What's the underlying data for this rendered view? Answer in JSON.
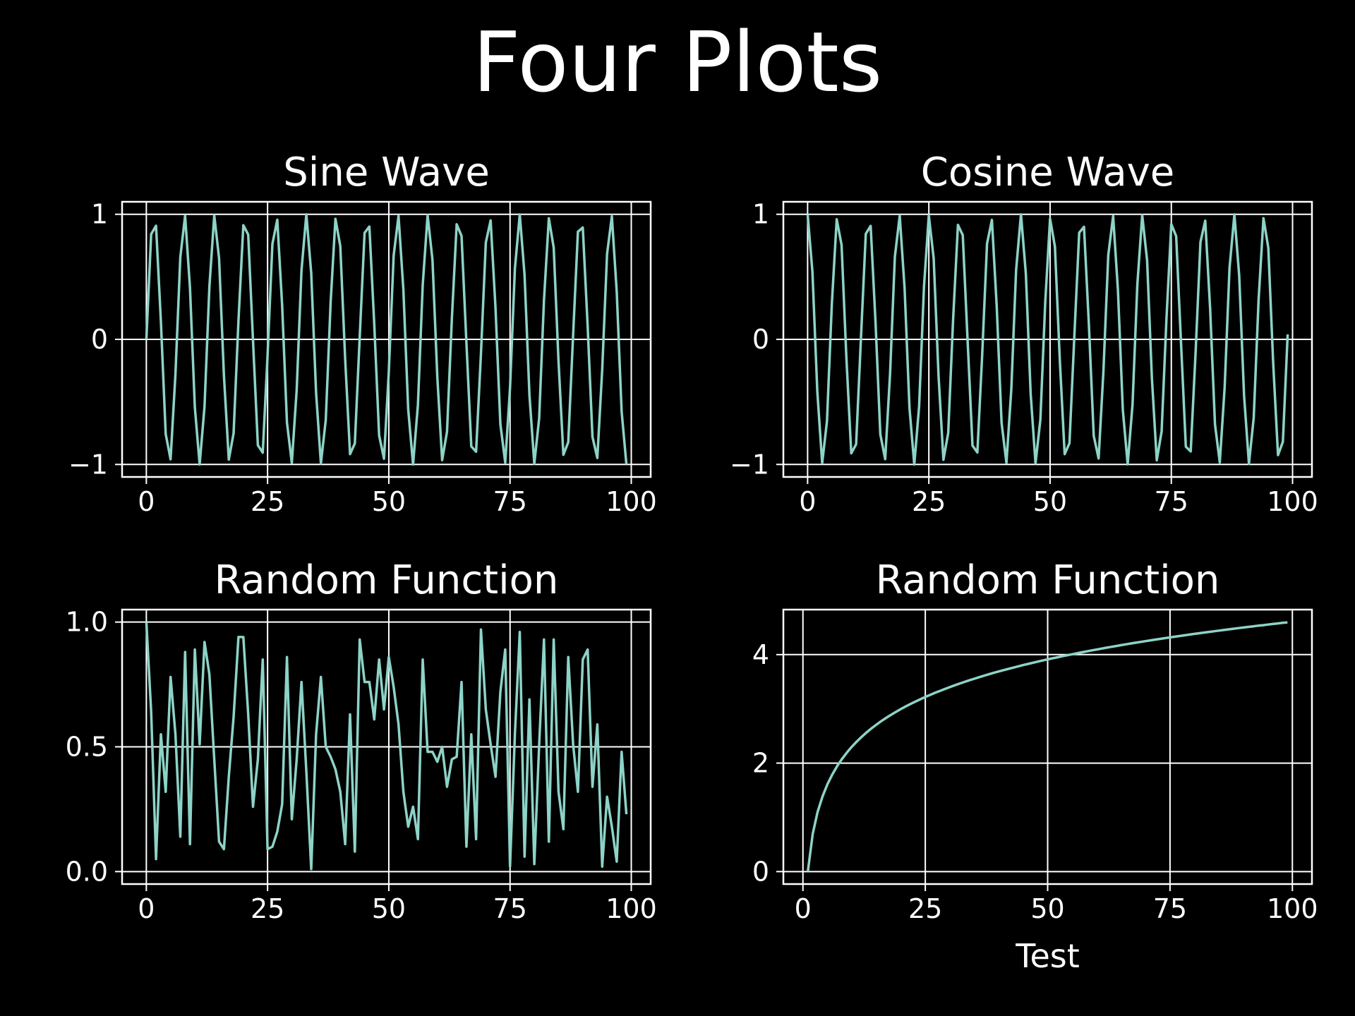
{
  "figure": {
    "title": "Four Plots",
    "background_color": "#000000",
    "foreground_color": "#ffffff",
    "line_color": "#8dd3c7"
  },
  "chart_data": [
    {
      "type": "line",
      "title": "Sine Wave",
      "xlabel": "",
      "ylabel": "",
      "function": "y = sin(x), x = 0..99 (integer steps)",
      "x": [
        0,
        1,
        2,
        3,
        4,
        5,
        6,
        7,
        8,
        9,
        10,
        11,
        12,
        13,
        14,
        15,
        16,
        17,
        18,
        19,
        20,
        21,
        22,
        23,
        24,
        25,
        26,
        27,
        28,
        29,
        30,
        31,
        32,
        33,
        34,
        35,
        36,
        37,
        38,
        39,
        40,
        41,
        42,
        43,
        44,
        45,
        46,
        47,
        48,
        49,
        50,
        51,
        52,
        53,
        54,
        55,
        56,
        57,
        58,
        59,
        60,
        61,
        62,
        63,
        64,
        65,
        66,
        67,
        68,
        69,
        70,
        71,
        72,
        73,
        74,
        75,
        76,
        77,
        78,
        79,
        80,
        81,
        82,
        83,
        84,
        85,
        86,
        87,
        88,
        89,
        90,
        91,
        92,
        93,
        94,
        95,
        96,
        97,
        98,
        99
      ],
      "y": [
        0,
        0.841,
        0.909,
        0.141,
        -0.757,
        -0.959,
        -0.279,
        0.657,
        0.989,
        0.412,
        -0.544,
        -1.0,
        -0.537,
        0.42,
        0.991,
        0.65,
        -0.288,
        -0.961,
        -0.751,
        0.15,
        0.913,
        0.837,
        -0.009,
        -0.846,
        -0.906,
        -0.132,
        0.763,
        0.956,
        0.271,
        -0.664,
        -0.988,
        -0.404,
        0.551,
        1.0,
        0.529,
        -0.428,
        -0.992,
        -0.644,
        0.296,
        0.964,
        0.745,
        -0.159,
        -0.917,
        -0.832,
        0.018,
        0.851,
        0.902,
        0.124,
        -0.768,
        -0.954,
        -0.262,
        0.67,
        0.987,
        0.396,
        -0.559,
        -1.0,
        -0.522,
        0.436,
        0.993,
        0.637,
        -0.305,
        -0.966,
        -0.739,
        0.167,
        0.92,
        0.827,
        -0.027,
        -0.856,
        -0.898,
        -0.115,
        0.774,
        0.951,
        0.254,
        -0.677,
        -0.985,
        -0.388,
        0.566,
        0.999,
        0.514,
        -0.444,
        -0.994,
        -0.63,
        0.313,
        0.968,
        0.733,
        -0.176,
        -0.923,
        -0.822,
        0.035,
        0.86,
        0.894,
        0.106,
        -0.779,
        -0.948,
        -0.245,
        0.683,
        0.984,
        0.38,
        -0.574,
        -0.999
      ],
      "xlim": [
        -5,
        104
      ],
      "ylim": [
        -1.1,
        1.1
      ],
      "xticks": [
        0,
        25,
        50,
        75,
        100
      ],
      "xtick_labels": [
        "0",
        "25",
        "50",
        "75",
        "100"
      ],
      "yticks": [
        -1,
        0,
        1
      ],
      "ytick_labels": [
        "−1",
        "0",
        "1"
      ],
      "grid": true
    },
    {
      "type": "line",
      "title": "Cosine Wave",
      "xlabel": "",
      "ylabel": "",
      "function": "y = cos(x), x = 0..99 (integer steps)",
      "x": [
        0,
        1,
        2,
        3,
        4,
        5,
        6,
        7,
        8,
        9,
        10,
        11,
        12,
        13,
        14,
        15,
        16,
        17,
        18,
        19,
        20,
        21,
        22,
        23,
        24,
        25,
        26,
        27,
        28,
        29,
        30,
        31,
        32,
        33,
        34,
        35,
        36,
        37,
        38,
        39,
        40,
        41,
        42,
        43,
        44,
        45,
        46,
        47,
        48,
        49,
        50,
        51,
        52,
        53,
        54,
        55,
        56,
        57,
        58,
        59,
        60,
        61,
        62,
        63,
        64,
        65,
        66,
        67,
        68,
        69,
        70,
        71,
        72,
        73,
        74,
        75,
        76,
        77,
        78,
        79,
        80,
        81,
        82,
        83,
        84,
        85,
        86,
        87,
        88,
        89,
        90,
        91,
        92,
        93,
        94,
        95,
        96,
        97,
        98,
        99
      ],
      "y": [
        1.0,
        0.54,
        -0.416,
        -0.99,
        -0.654,
        0.284,
        0.96,
        0.754,
        -0.146,
        -0.911,
        -0.839,
        0.004,
        0.844,
        0.907,
        0.137,
        -0.76,
        -0.958,
        -0.275,
        0.66,
        0.989,
        0.408,
        -0.548,
        -1.0,
        -0.533,
        0.424,
        0.991,
        0.647,
        -0.292,
        -0.963,
        -0.748,
        0.154,
        0.915,
        0.834,
        -0.013,
        -0.849,
        -0.904,
        -0.128,
        0.765,
        0.955,
        0.267,
        -0.667,
        -0.987,
        -0.4,
        0.555,
        1.0,
        0.525,
        -0.432,
        -0.992,
        -0.641,
        0.3,
        0.965,
        0.742,
        -0.163,
        -0.918,
        -0.83,
        0.022,
        0.853,
        0.9,
        0.12,
        -0.771,
        -0.952,
        -0.258,
        0.674,
        0.986,
        0.392,
        -0.562,
        -0.999,
        -0.518,
        0.44,
        0.993,
        0.633,
        -0.309,
        -0.967,
        -0.736,
        0.172,
        0.922,
        0.825,
        -0.031,
        -0.858,
        -0.896,
        -0.11,
        0.777,
        0.949,
        0.249,
        -0.68,
        -0.984,
        -0.384,
        0.57,
        0.999,
        0.51,
        -0.448,
        -0.995,
        -0.626,
        0.317,
        0.969,
        0.73,
        -0.18,
        -0.925,
        -0.819,
        0.04
      ],
      "xlim": [
        -5,
        104
      ],
      "ylim": [
        -1.1,
        1.1
      ],
      "xticks": [
        0,
        25,
        50,
        75,
        100
      ],
      "xtick_labels": [
        "0",
        "25",
        "50",
        "75",
        "100"
      ],
      "yticks": [
        -1,
        0,
        1
      ],
      "ytick_labels": [
        "−1",
        "0",
        "1"
      ],
      "grid": true
    },
    {
      "type": "line",
      "title": "Random Function",
      "xlabel": "",
      "ylabel": "",
      "x": [
        0,
        1,
        2,
        3,
        4,
        5,
        6,
        7,
        8,
        9,
        10,
        11,
        12,
        13,
        14,
        15,
        16,
        17,
        18,
        19,
        20,
        21,
        22,
        23,
        24,
        25,
        26,
        27,
        28,
        29,
        30,
        31,
        32,
        33,
        34,
        35,
        36,
        37,
        38,
        39,
        40,
        41,
        42,
        43,
        44,
        45,
        46,
        47,
        48,
        49,
        50,
        51,
        52,
        53,
        54,
        55,
        56,
        57,
        58,
        59,
        60,
        61,
        62,
        63,
        64,
        65,
        66,
        67,
        68,
        69,
        70,
        71,
        72,
        73,
        74,
        75,
        76,
        77,
        78,
        79,
        80,
        81,
        82,
        83,
        84,
        85,
        86,
        87,
        88,
        89,
        90,
        91,
        92,
        93,
        94,
        95,
        96,
        97,
        98,
        99
      ],
      "y": [
        1.0,
        0.64,
        0.05,
        0.55,
        0.32,
        0.78,
        0.55,
        0.14,
        0.88,
        0.11,
        0.89,
        0.51,
        0.92,
        0.79,
        0.45,
        0.12,
        0.09,
        0.38,
        0.62,
        0.94,
        0.94,
        0.63,
        0.26,
        0.45,
        0.85,
        0.09,
        0.1,
        0.16,
        0.27,
        0.86,
        0.21,
        0.45,
        0.76,
        0.4,
        0.01,
        0.55,
        0.78,
        0.5,
        0.46,
        0.41,
        0.32,
        0.11,
        0.63,
        0.08,
        0.93,
        0.76,
        0.76,
        0.61,
        0.85,
        0.65,
        0.86,
        0.74,
        0.59,
        0.32,
        0.18,
        0.26,
        0.13,
        0.85,
        0.48,
        0.48,
        0.44,
        0.5,
        0.34,
        0.45,
        0.46,
        0.76,
        0.1,
        0.55,
        0.13,
        0.97,
        0.65,
        0.51,
        0.38,
        0.72,
        0.89,
        0.02,
        0.55,
        0.96,
        0.06,
        0.69,
        0.03,
        0.51,
        0.93,
        0.12,
        0.93,
        0.32,
        0.17,
        0.86,
        0.51,
        0.32,
        0.85,
        0.89,
        0.34,
        0.59,
        0.02,
        0.3,
        0.18,
        0.04,
        0.48,
        0.23
      ],
      "xlim": [
        -5,
        104
      ],
      "ylim": [
        -0.05,
        1.05
      ],
      "xticks": [
        0,
        25,
        50,
        75,
        100
      ],
      "xtick_labels": [
        "0",
        "25",
        "50",
        "75",
        "100"
      ],
      "yticks": [
        0,
        0.5,
        1.0
      ],
      "ytick_labels": [
        "0.0",
        "0.5",
        "1.0"
      ],
      "grid": true
    },
    {
      "type": "line",
      "title": "Random Function",
      "xlabel": "Test",
      "ylabel": "",
      "function": "y = ln(x), x = 1..99 (integer steps)",
      "x": [
        1,
        2,
        3,
        4,
        5,
        6,
        7,
        8,
        9,
        10,
        11,
        12,
        13,
        14,
        15,
        16,
        17,
        18,
        19,
        20,
        21,
        22,
        23,
        24,
        25,
        26,
        27,
        28,
        29,
        30,
        31,
        32,
        33,
        34,
        35,
        36,
        37,
        38,
        39,
        40,
        41,
        42,
        43,
        44,
        45,
        46,
        47,
        48,
        49,
        50,
        51,
        52,
        53,
        54,
        55,
        56,
        57,
        58,
        59,
        60,
        61,
        62,
        63,
        64,
        65,
        66,
        67,
        68,
        69,
        70,
        71,
        72,
        73,
        74,
        75,
        76,
        77,
        78,
        79,
        80,
        81,
        82,
        83,
        84,
        85,
        86,
        87,
        88,
        89,
        90,
        91,
        92,
        93,
        94,
        95,
        96,
        97,
        98,
        99
      ],
      "y": [
        0.0,
        0.693,
        1.099,
        1.386,
        1.609,
        1.792,
        1.946,
        2.079,
        2.197,
        2.303,
        2.398,
        2.485,
        2.565,
        2.639,
        2.708,
        2.773,
        2.833,
        2.89,
        2.944,
        2.996,
        3.045,
        3.091,
        3.135,
        3.178,
        3.219,
        3.258,
        3.296,
        3.332,
        3.367,
        3.401,
        3.434,
        3.466,
        3.497,
        3.526,
        3.555,
        3.584,
        3.611,
        3.638,
        3.664,
        3.689,
        3.714,
        3.738,
        3.761,
        3.784,
        3.807,
        3.829,
        3.85,
        3.871,
        3.892,
        3.912,
        3.932,
        3.951,
        3.97,
        3.989,
        4.007,
        4.025,
        4.043,
        4.06,
        4.078,
        4.094,
        4.111,
        4.127,
        4.143,
        4.159,
        4.174,
        4.19,
        4.205,
        4.22,
        4.234,
        4.248,
        4.263,
        4.277,
        4.29,
        4.304,
        4.317,
        4.331,
        4.344,
        4.357,
        4.369,
        4.382,
        4.394,
        4.407,
        4.419,
        4.431,
        4.443,
        4.454,
        4.466,
        4.477,
        4.489,
        4.5,
        4.511,
        4.522,
        4.533,
        4.543,
        4.554,
        4.564,
        4.575,
        4.585,
        4.595
      ],
      "xlim": [
        -4,
        104
      ],
      "ylim": [
        -0.23,
        4.83
      ],
      "xticks": [
        0,
        25,
        50,
        75,
        100
      ],
      "xtick_labels": [
        "0",
        "25",
        "50",
        "75",
        "100"
      ],
      "yticks": [
        0,
        2,
        4
      ],
      "ytick_labels": [
        "0",
        "2",
        "4"
      ],
      "grid": true
    }
  ]
}
